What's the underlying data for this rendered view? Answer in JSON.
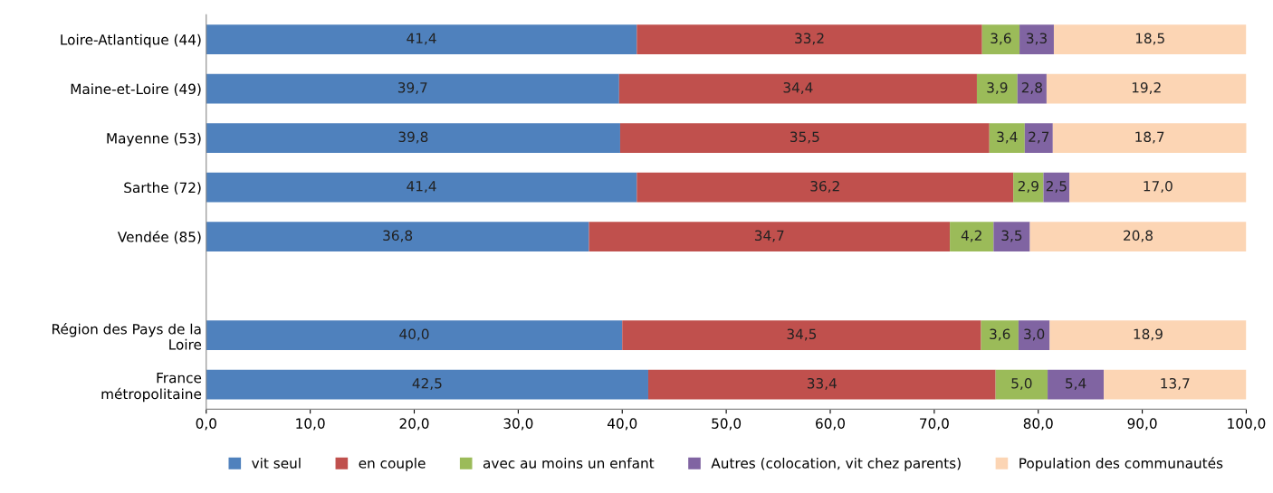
{
  "chart_data": {
    "type": "bar",
    "orientation": "horizontal",
    "stacked": true,
    "legend": "bottom",
    "grid": false,
    "categories": [
      "Loire-Atlantique (44)",
      "Maine-et-Loire (49)",
      "Mayenne (53)",
      "Sarthe (72)",
      "Vendée (85)",
      null,
      "Région des Pays de la\nLoire",
      "France\nmétropolitaine"
    ],
    "series": [
      {
        "name": "vit seul",
        "color": "#4f81bd",
        "values": [
          41.4,
          39.7,
          39.8,
          41.4,
          36.8,
          null,
          40.0,
          42.5
        ],
        "value_labels": [
          "41,4",
          "39,7",
          "39,8",
          "41,4",
          "36,8",
          null,
          "40,0",
          "42,5"
        ]
      },
      {
        "name": "en couple",
        "color": "#c0504d",
        "values": [
          33.2,
          34.4,
          35.5,
          36.2,
          34.7,
          null,
          34.5,
          33.4
        ],
        "value_labels": [
          "33,2",
          "34,4",
          "35,5",
          "36,2",
          "34,7",
          null,
          "34,5",
          "33,4"
        ]
      },
      {
        "name": "avec au moins un enfant",
        "color": "#9bbb59",
        "values": [
          3.6,
          3.9,
          3.4,
          2.9,
          4.2,
          null,
          3.6,
          5.0
        ],
        "value_labels": [
          "3,6",
          "3,9",
          "3,4",
          "2,9",
          "4,2",
          null,
          "3,6",
          "5,0"
        ]
      },
      {
        "name": "Autres (colocation, vit chez parents)",
        "color": "#8064a2",
        "values": [
          3.3,
          2.8,
          2.7,
          2.5,
          3.5,
          null,
          3.0,
          5.4
        ],
        "value_labels": [
          "3,3",
          "2,8",
          "2,7",
          "2,5",
          "3,5",
          null,
          "3,0",
          "5,4"
        ]
      },
      {
        "name": "Population des communautés",
        "color": "#fcd5b4",
        "values": [
          18.5,
          19.2,
          18.7,
          17.0,
          20.8,
          null,
          18.9,
          13.7
        ],
        "value_labels": [
          "18,5",
          "19,2",
          "18,7",
          "17,0",
          "20,8",
          null,
          "18,9",
          "13,7"
        ]
      }
    ],
    "xlim": [
      0,
      100
    ],
    "xticks": [
      {
        "value": 0,
        "label": "0,0"
      },
      {
        "value": 10,
        "label": "10,0"
      },
      {
        "value": 20,
        "label": "20,0"
      },
      {
        "value": 30,
        "label": "30,0"
      },
      {
        "value": 40,
        "label": "40,0"
      },
      {
        "value": 50,
        "label": "50,0"
      },
      {
        "value": 60,
        "label": "60,0"
      },
      {
        "value": 70,
        "label": "70,0"
      },
      {
        "value": 80,
        "label": "80,0"
      },
      {
        "value": 90,
        "label": "90,0"
      },
      {
        "value": 100,
        "label": "100,0"
      }
    ]
  }
}
